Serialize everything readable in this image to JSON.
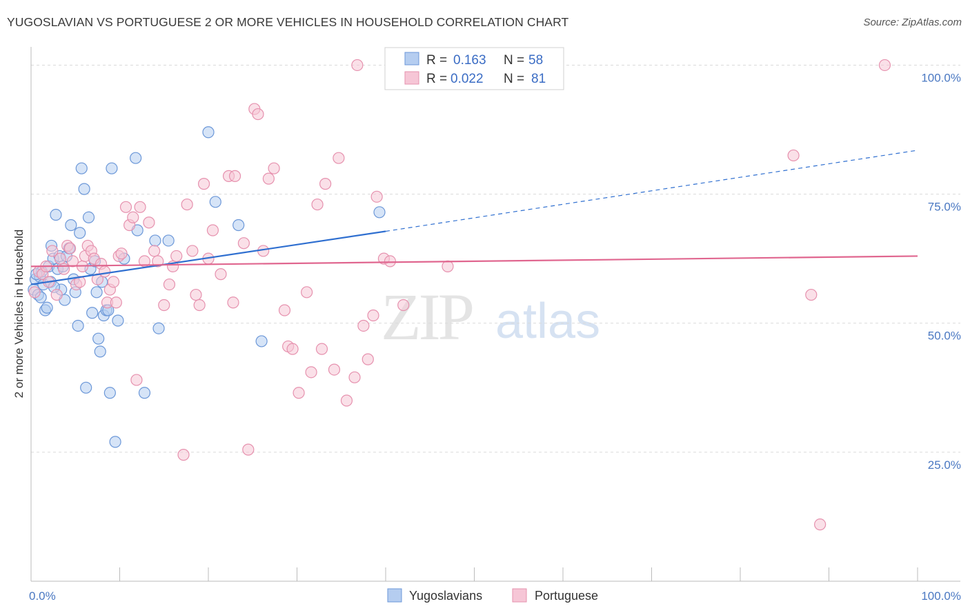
{
  "title": "YUGOSLAVIAN VS PORTUGUESE 2 OR MORE VEHICLES IN HOUSEHOLD CORRELATION CHART",
  "source": "Source: ZipAtlas.com",
  "watermark": {
    "zip": "ZIP",
    "atlas": "atlas"
  },
  "legend_stats": {
    "r_label": "R =",
    "n_label": "N =",
    "rows": [
      {
        "series": "Yugoslavians",
        "r": "0.163",
        "n": "58"
      },
      {
        "series": "Portuguese",
        "r": "0.022",
        "n": "81"
      }
    ]
  },
  "colors": {
    "yugoslavians_fill": "#b5cdf0",
    "yugoslavians_stroke": "#6b97d8",
    "yugoslavians_line": "#2f6fd0",
    "portuguese_fill": "#f6c6d6",
    "portuguese_stroke": "#e691ae",
    "portuguese_line": "#e0668f",
    "grid": "#d9d9d9",
    "axis_text": "#4a78c2"
  },
  "chart_data": {
    "type": "scatter",
    "title": "YUGOSLAVIAN VS PORTUGUESE 2 OR MORE VEHICLES IN HOUSEHOLD CORRELATION CHART",
    "xlabel": "",
    "ylabel": "2 or more Vehicles in Household",
    "xlim": [
      0,
      100
    ],
    "ylim": [
      0,
      103
    ],
    "x_tick_labels": [
      "0.0%",
      "100.0%"
    ],
    "y_ticks": [
      25,
      50,
      75,
      100
    ],
    "y_tick_labels": [
      "25.0%",
      "50.0%",
      "75.0%",
      "100.0%"
    ],
    "grid": "horizontal dashed",
    "legend_placement": "top-center",
    "series": [
      {
        "name": "Yugoslavians",
        "points": [
          [
            0.3,
            56.5
          ],
          [
            0.5,
            58.5
          ],
          [
            0.8,
            55.5
          ],
          [
            1.0,
            59.0
          ],
          [
            1.2,
            60.0
          ],
          [
            1.4,
            57.5
          ],
          [
            1.6,
            52.5
          ],
          [
            1.8,
            53.0
          ],
          [
            2.0,
            61.0
          ],
          [
            2.2,
            58.0
          ],
          [
            2.3,
            65.0
          ],
          [
            2.5,
            62.5
          ],
          [
            2.8,
            71.0
          ],
          [
            3.0,
            60.5
          ],
          [
            3.2,
            63.0
          ],
          [
            3.4,
            56.5
          ],
          [
            3.6,
            61.0
          ],
          [
            3.8,
            54.5
          ],
          [
            4.0,
            63.0
          ],
          [
            4.3,
            64.5
          ],
          [
            4.5,
            69.0
          ],
          [
            4.8,
            58.5
          ],
          [
            5.0,
            56.0
          ],
          [
            5.3,
            49.5
          ],
          [
            5.5,
            67.5
          ],
          [
            5.7,
            80.0
          ],
          [
            6.0,
            76.0
          ],
          [
            6.2,
            37.5
          ],
          [
            6.5,
            70.5
          ],
          [
            6.7,
            60.5
          ],
          [
            6.9,
            52.0
          ],
          [
            7.2,
            62.0
          ],
          [
            7.4,
            56.0
          ],
          [
            7.6,
            47.0
          ],
          [
            7.8,
            44.5
          ],
          [
            8.0,
            58.0
          ],
          [
            8.2,
            51.5
          ],
          [
            8.5,
            52.5
          ],
          [
            8.7,
            52.5
          ],
          [
            8.9,
            36.5
          ],
          [
            9.1,
            80.0
          ],
          [
            9.5,
            27.0
          ],
          [
            9.8,
            50.5
          ],
          [
            10.5,
            62.5
          ],
          [
            11.8,
            82.0
          ],
          [
            12.0,
            68.0
          ],
          [
            12.8,
            36.5
          ],
          [
            14.0,
            66.0
          ],
          [
            14.4,
            49.0
          ],
          [
            15.5,
            66.0
          ],
          [
            20.0,
            87.0
          ],
          [
            20.8,
            73.5
          ],
          [
            23.4,
            69.0
          ],
          [
            26.0,
            46.5
          ],
          [
            39.3,
            71.5
          ],
          [
            0.6,
            59.5
          ],
          [
            1.1,
            55.0
          ],
          [
            2.6,
            57.0
          ]
        ]
      },
      {
        "name": "Portuguese",
        "points": [
          [
            0.4,
            56.0
          ],
          [
            0.9,
            60.0
          ],
          [
            1.3,
            59.5
          ],
          [
            1.7,
            61.0
          ],
          [
            2.0,
            58.0
          ],
          [
            2.4,
            64.0
          ],
          [
            2.9,
            55.5
          ],
          [
            3.3,
            62.5
          ],
          [
            3.7,
            60.5
          ],
          [
            4.1,
            65.0
          ],
          [
            4.4,
            64.5
          ],
          [
            4.7,
            62.0
          ],
          [
            5.1,
            57.5
          ],
          [
            5.5,
            58.0
          ],
          [
            5.8,
            61.0
          ],
          [
            6.1,
            63.0
          ],
          [
            6.4,
            65.0
          ],
          [
            6.8,
            64.0
          ],
          [
            7.1,
            62.5
          ],
          [
            7.5,
            58.5
          ],
          [
            7.9,
            61.5
          ],
          [
            8.3,
            60.0
          ],
          [
            8.6,
            54.0
          ],
          [
            8.9,
            56.5
          ],
          [
            9.3,
            58.0
          ],
          [
            9.6,
            54.0
          ],
          [
            9.9,
            63.0
          ],
          [
            10.2,
            63.5
          ],
          [
            10.7,
            72.5
          ],
          [
            11.1,
            69.0
          ],
          [
            11.5,
            70.5
          ],
          [
            11.9,
            39.0
          ],
          [
            12.3,
            72.5
          ],
          [
            12.8,
            62.0
          ],
          [
            13.3,
            69.5
          ],
          [
            13.9,
            64.0
          ],
          [
            14.3,
            62.0
          ],
          [
            15.0,
            53.5
          ],
          [
            15.6,
            57.5
          ],
          [
            16.0,
            61.0
          ],
          [
            16.4,
            63.0
          ],
          [
            17.2,
            24.5
          ],
          [
            17.6,
            73.0
          ],
          [
            18.2,
            64.0
          ],
          [
            18.6,
            55.5
          ],
          [
            19.0,
            53.5
          ],
          [
            19.5,
            77.0
          ],
          [
            20.0,
            62.5
          ],
          [
            20.5,
            68.0
          ],
          [
            21.4,
            59.5
          ],
          [
            22.3,
            78.5
          ],
          [
            22.8,
            54.0
          ],
          [
            23.0,
            78.5
          ],
          [
            24.0,
            65.5
          ],
          [
            24.5,
            25.5
          ],
          [
            25.2,
            91.5
          ],
          [
            25.6,
            90.5
          ],
          [
            26.2,
            64.0
          ],
          [
            26.8,
            78.0
          ],
          [
            27.4,
            80.0
          ],
          [
            28.6,
            52.5
          ],
          [
            29.0,
            45.5
          ],
          [
            29.5,
            45.0
          ],
          [
            30.2,
            36.5
          ],
          [
            31.1,
            56.0
          ],
          [
            31.6,
            40.5
          ],
          [
            32.3,
            73.0
          ],
          [
            32.8,
            45.0
          ],
          [
            33.2,
            77.0
          ],
          [
            34.2,
            41.0
          ],
          [
            34.7,
            82.0
          ],
          [
            35.6,
            35.0
          ],
          [
            36.5,
            39.5
          ],
          [
            37.5,
            49.5
          ],
          [
            38.0,
            43.0
          ],
          [
            38.6,
            51.5
          ],
          [
            39.0,
            74.5
          ],
          [
            39.8,
            62.5
          ],
          [
            40.5,
            62.0
          ],
          [
            42.0,
            53.5
          ],
          [
            47.0,
            61.0
          ]
        ]
      },
      {
        "name": "Portuguese",
        "points": [
          [
            36.8,
            100.0
          ],
          [
            45.2,
            100.0
          ],
          [
            86.0,
            82.5
          ],
          [
            88.0,
            55.5
          ],
          [
            96.3,
            100.0
          ],
          [
            89.0,
            11.0
          ]
        ]
      }
    ],
    "trend_lines": [
      {
        "series": "Yugoslavians",
        "x0": 0,
        "y0": 57.5,
        "x1": 40,
        "y1": 67.8,
        "dashed_to_x": 100,
        "dashed_to_y": 83.5
      },
      {
        "series": "Portuguese",
        "x0": 0,
        "y0": 61.0,
        "x1": 100,
        "y1": 63.0
      }
    ]
  }
}
